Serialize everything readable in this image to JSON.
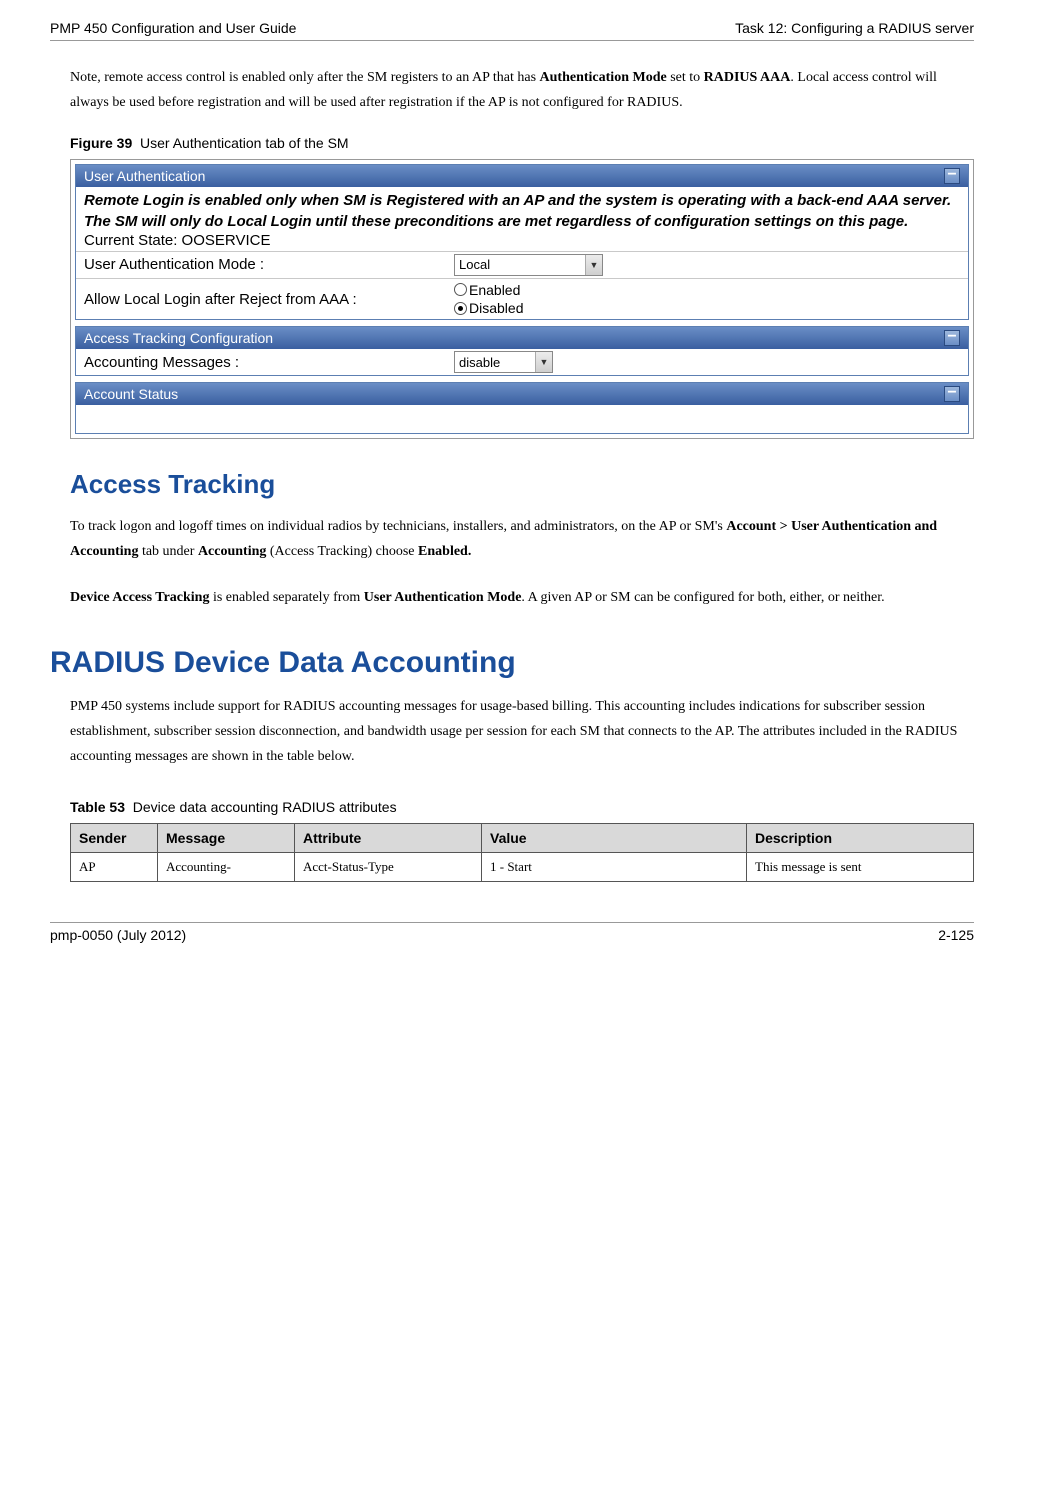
{
  "header": {
    "left": "PMP 450 Configuration and User Guide",
    "right": "Task 12: Configuring a RADIUS server"
  },
  "intro_html": "Note, remote access control is enabled only after the SM registers to an AP that has <b>Authentication Mode</b> set to <b>RADIUS AAA</b>. Local access control will always be used before registration and will be used after registration if the AP is not configured for RADIUS.",
  "figure": {
    "num": "Figure 39",
    "title": "User Authentication tab of the SM"
  },
  "panels": {
    "ua": {
      "title": "User Authentication",
      "note": "Remote Login is enabled only when SM is Registered with an AP and the system is operating with a back-end AAA server. The SM will only do Local Login until these preconditions are met regardless of configuration settings on this page.",
      "state": "Current State: OOSERVICE",
      "mode_label": "User Authentication Mode :",
      "mode_value": "Local",
      "allow_label": "Allow Local Login after Reject from AAA :",
      "enabled": "Enabled",
      "disabled": "Disabled"
    },
    "atc": {
      "title": "Access Tracking Configuration",
      "acct_label": "Accounting Messages :",
      "acct_value": "disable"
    },
    "as": {
      "title": "Account Status"
    }
  },
  "access_tracking": {
    "heading": "Access Tracking",
    "p1_html": "To track logon and logoff times on individual radios by technicians, installers, and administrators, on the AP or SM's <b>Account > User Authentication and Accounting</b> tab under <b>Accounting</b> (Access Tracking) choose <b>Enabled.</b>",
    "p2_html": "<b>Device Access Tracking</b> is enabled separately from <b>User Authentication Mode</b>. A given AP or SM can be configured for both, either, or neither."
  },
  "radius": {
    "heading": "RADIUS Device Data Accounting",
    "p1": "PMP 450 systems include support for RADIUS accounting messages for usage-based billing.  This accounting includes indications for subscriber session establishment, subscriber session disconnection, and bandwidth usage per session for each SM that connects to the AP.  The attributes included in the RADIUS accounting messages are shown in the table below."
  },
  "table": {
    "num": "Table 53",
    "title": "Device data accounting RADIUS attributes",
    "headers": [
      "Sender",
      "Message",
      "Attribute",
      "Value",
      "Description"
    ],
    "rows": [
      [
        "AP",
        "Accounting-",
        "Acct-Status-Type",
        "1 - Start",
        "This message is sent"
      ]
    ],
    "col_widths": [
      "70px",
      "120px",
      "170px",
      "auto",
      "210px"
    ]
  },
  "footer": {
    "left": "pmp-0050 (July 2012)",
    "right": "2-125"
  }
}
